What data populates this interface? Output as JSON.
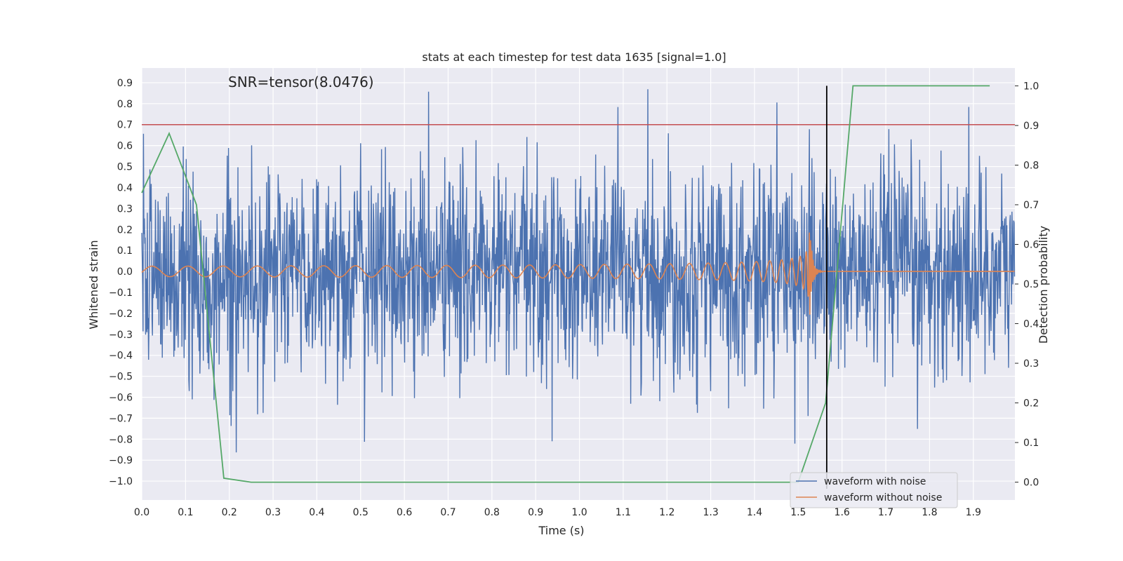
{
  "chart_data": {
    "type": "line",
    "title": "stats at each timestep for test data 1635 [signal=1.0]",
    "xlabel": "Time (s)",
    "ylabel": "Whitened strain",
    "y2label": "Detection probability",
    "annotation": "SNR=tensor(8.0476)",
    "xlim": [
      0.0,
      1.995
    ],
    "ylim": [
      -1.09,
      0.97
    ],
    "y2lim": [
      -0.045,
      1.045
    ],
    "xticks": [
      0.0,
      0.1,
      0.2,
      0.3,
      0.4,
      0.5,
      0.6,
      0.7,
      0.8,
      0.9,
      1.0,
      1.1,
      1.2,
      1.3,
      1.4,
      1.5,
      1.6,
      1.7,
      1.8,
      1.9
    ],
    "xtick_labels": [
      "0.0",
      "0.1",
      "0.2",
      "0.3",
      "0.4",
      "0.5",
      "0.6",
      "0.7",
      "0.8",
      "0.9",
      "1.0",
      "1.1",
      "1.2",
      "1.3",
      "1.4",
      "1.5",
      "1.6",
      "1.7",
      "1.8",
      "1.9"
    ],
    "yticks": [
      -1.0,
      -0.9,
      -0.8,
      -0.7,
      -0.6,
      -0.5,
      -0.4,
      -0.3,
      -0.2,
      -0.1,
      0.0,
      0.1,
      0.2,
      0.3,
      0.4,
      0.5,
      0.6,
      0.7,
      0.8,
      0.9
    ],
    "ytick_labels": [
      "−1.0",
      "−0.9",
      "−0.8",
      "−0.7",
      "−0.6",
      "−0.5",
      "−0.4",
      "−0.3",
      "−0.2",
      "−0.1",
      "0.0",
      "0.1",
      "0.2",
      "0.3",
      "0.4",
      "0.5",
      "0.6",
      "0.7",
      "0.8",
      "0.9"
    ],
    "y2ticks": [
      0.0,
      0.1,
      0.2,
      0.3,
      0.4,
      0.5,
      0.6,
      0.7,
      0.8,
      0.9,
      1.0
    ],
    "y2tick_labels": [
      "0.0",
      "0.1",
      "0.2",
      "0.3",
      "0.4",
      "0.5",
      "0.6",
      "0.7",
      "0.8",
      "0.9",
      "1.0"
    ],
    "threshold": {
      "value": 0.7,
      "color": "#c44e52"
    },
    "merger_time": 1.565,
    "series": [
      {
        "name": "waveform with noise",
        "color": "#4c72b0",
        "noise_amplitude": 0.25,
        "duration": 2.0
      },
      {
        "name": "waveform without noise",
        "color": "#dd8452",
        "inspiral_amplitude": 0.025,
        "peak_amplitude": 0.28,
        "start_freq_hz": 12,
        "merger_time": 1.525
      },
      {
        "name": "Detection probability",
        "color": "#55a868",
        "axis": "right",
        "x": [
          0.0,
          0.0625,
          0.125,
          0.1875,
          0.25,
          1.5,
          1.5625,
          1.625,
          1.9375
        ],
        "values": [
          0.73,
          0.88,
          0.7,
          0.01,
          0.0,
          0.0,
          0.2,
          1.0,
          1.0
        ]
      }
    ],
    "legend": {
      "position": "lower-right",
      "entries": [
        "waveform with noise",
        "waveform without noise"
      ]
    }
  }
}
